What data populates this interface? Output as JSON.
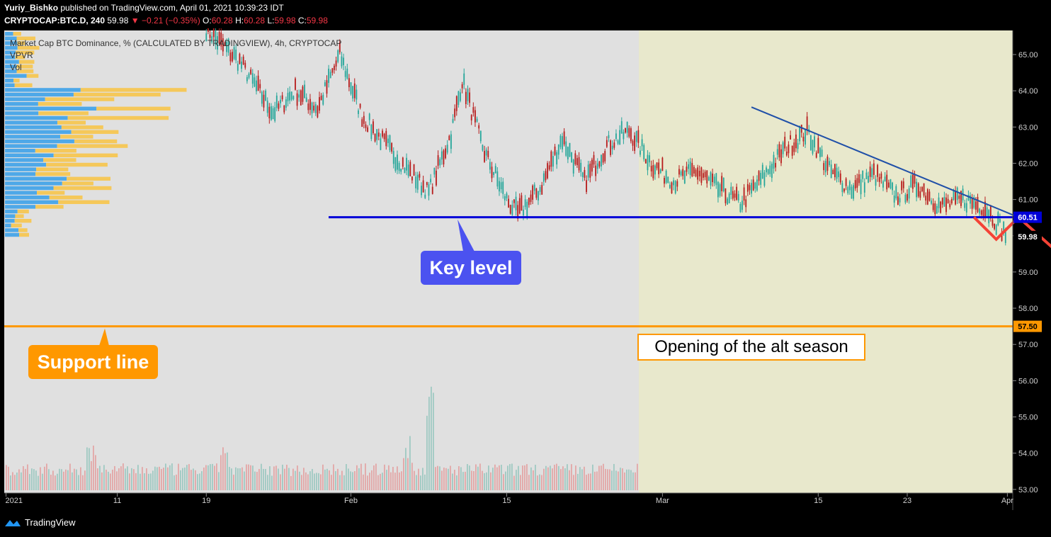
{
  "header": {
    "author": "Yuriy_Bishko",
    "published_text": "published on TradingView.com, April 01, 2021 10:39:23 IDT",
    "symbol": "CRYPTOCAP:BTC.D, 240",
    "last": "59.98",
    "change": "▼ −0.21 (−0.35%)",
    "o_label": "O:",
    "o_value": "60.28",
    "h_label": "H:",
    "h_value": "60.28",
    "l_label": "L:",
    "l_value": "59.98",
    "c_label": "C:",
    "c_value": "59.98"
  },
  "legend": {
    "title": "Market Cap BTC Dominance, % (CALCULATED BY TRADINGVIEW), 4h, CRYPTOCAP",
    "vpvr": "VPVR",
    "vol": "Vol"
  },
  "annotations": {
    "key_level": "Key level",
    "support_line": "Support line",
    "alt_season": "Opening of the alt season"
  },
  "footer": {
    "brand": "TradingView"
  },
  "colors": {
    "bg": "#e0e0e0",
    "highlight": "#e8e8cc",
    "key_line": "#0000d8",
    "support_line": "#ff9800",
    "trend_line": "#1f4fa8",
    "arrow": "#f44336",
    "up_candle": "#26a69a",
    "down_candle": "#b71c1c",
    "vp_up": "#4ea8e8",
    "vp_down": "#f5c85a"
  },
  "chart_data": {
    "type": "candlestick",
    "yaxis": {
      "ticks": [
        "65.00",
        "64.00",
        "63.00",
        "62.00",
        "61.00",
        "60.00",
        "59.00",
        "58.00",
        "57.00",
        "56.00",
        "55.00",
        "54.00",
        "53.00"
      ],
      "range": [
        52.9,
        66.2
      ]
    },
    "xaxis": {
      "ticks": [
        "2021",
        "11",
        "19",
        "Feb",
        "15",
        "Mar",
        "15",
        "23",
        "Apr"
      ]
    },
    "price_labels": [
      {
        "value": "60.51",
        "kind": "key_level"
      },
      {
        "value": "59.98",
        "kind": "last"
      },
      {
        "value": "57.50",
        "kind": "support"
      }
    ],
    "key_level": 60.51,
    "support_level": 57.5,
    "trendline": {
      "start_date": "Mar 9",
      "start": 63.55,
      "end_date": "Apr 2",
      "end": 60.51
    },
    "projection_arrow": [
      {
        "date": "Mar 29",
        "value": 60.51
      },
      {
        "date": "Mar 31",
        "value": 59.9
      },
      {
        "date": "Apr 2",
        "value": 60.51
      },
      {
        "date": "Apr 13",
        "value": 57.5
      }
    ],
    "price_path": [
      {
        "date": "Jan 19",
        "value": 65.7
      },
      {
        "date": "Jan 22",
        "value": 64.8
      },
      {
        "date": "Jan 25",
        "value": 63.4
      },
      {
        "date": "Jan 27",
        "value": 64.0
      },
      {
        "date": "Jan 29",
        "value": 63.5
      },
      {
        "date": "Jan 31",
        "value": 65.0
      },
      {
        "date": "Feb 2",
        "value": 63.3
      },
      {
        "date": "Feb 5",
        "value": 62.2
      },
      {
        "date": "Feb 8",
        "value": 61.2
      },
      {
        "date": "Feb 10",
        "value": 62.8
      },
      {
        "date": "Feb 11",
        "value": 64.3
      },
      {
        "date": "Feb 13",
        "value": 62.3
      },
      {
        "date": "Feb 15",
        "value": 61.0
      },
      {
        "date": "Feb 16",
        "value": 60.6
      },
      {
        "date": "Feb 18",
        "value": 61.3
      },
      {
        "date": "Feb 20",
        "value": 62.7
      },
      {
        "date": "Feb 22",
        "value": 61.5
      },
      {
        "date": "Feb 24",
        "value": 62.5
      },
      {
        "date": "Feb 26",
        "value": 62.9
      },
      {
        "date": "Feb 28",
        "value": 62.0
      },
      {
        "date": "Mar 2",
        "value": 61.5
      },
      {
        "date": "Mar 4",
        "value": 61.8
      },
      {
        "date": "Mar 6",
        "value": 61.3
      },
      {
        "date": "Mar 8",
        "value": 60.9
      },
      {
        "date": "Mar 10",
        "value": 61.6
      },
      {
        "date": "Mar 12",
        "value": 62.4
      },
      {
        "date": "Mar 14",
        "value": 62.9
      },
      {
        "date": "Mar 16",
        "value": 61.8
      },
      {
        "date": "Mar 18",
        "value": 61.3
      },
      {
        "date": "Mar 20",
        "value": 61.7
      },
      {
        "date": "Mar 22",
        "value": 61.1
      },
      {
        "date": "Mar 24",
        "value": 61.4
      },
      {
        "date": "Mar 26",
        "value": 60.8
      },
      {
        "date": "Mar 28",
        "value": 61.0
      },
      {
        "date": "Mar 30",
        "value": 60.8
      },
      {
        "date": "Apr 1",
        "value": 59.98
      }
    ]
  }
}
